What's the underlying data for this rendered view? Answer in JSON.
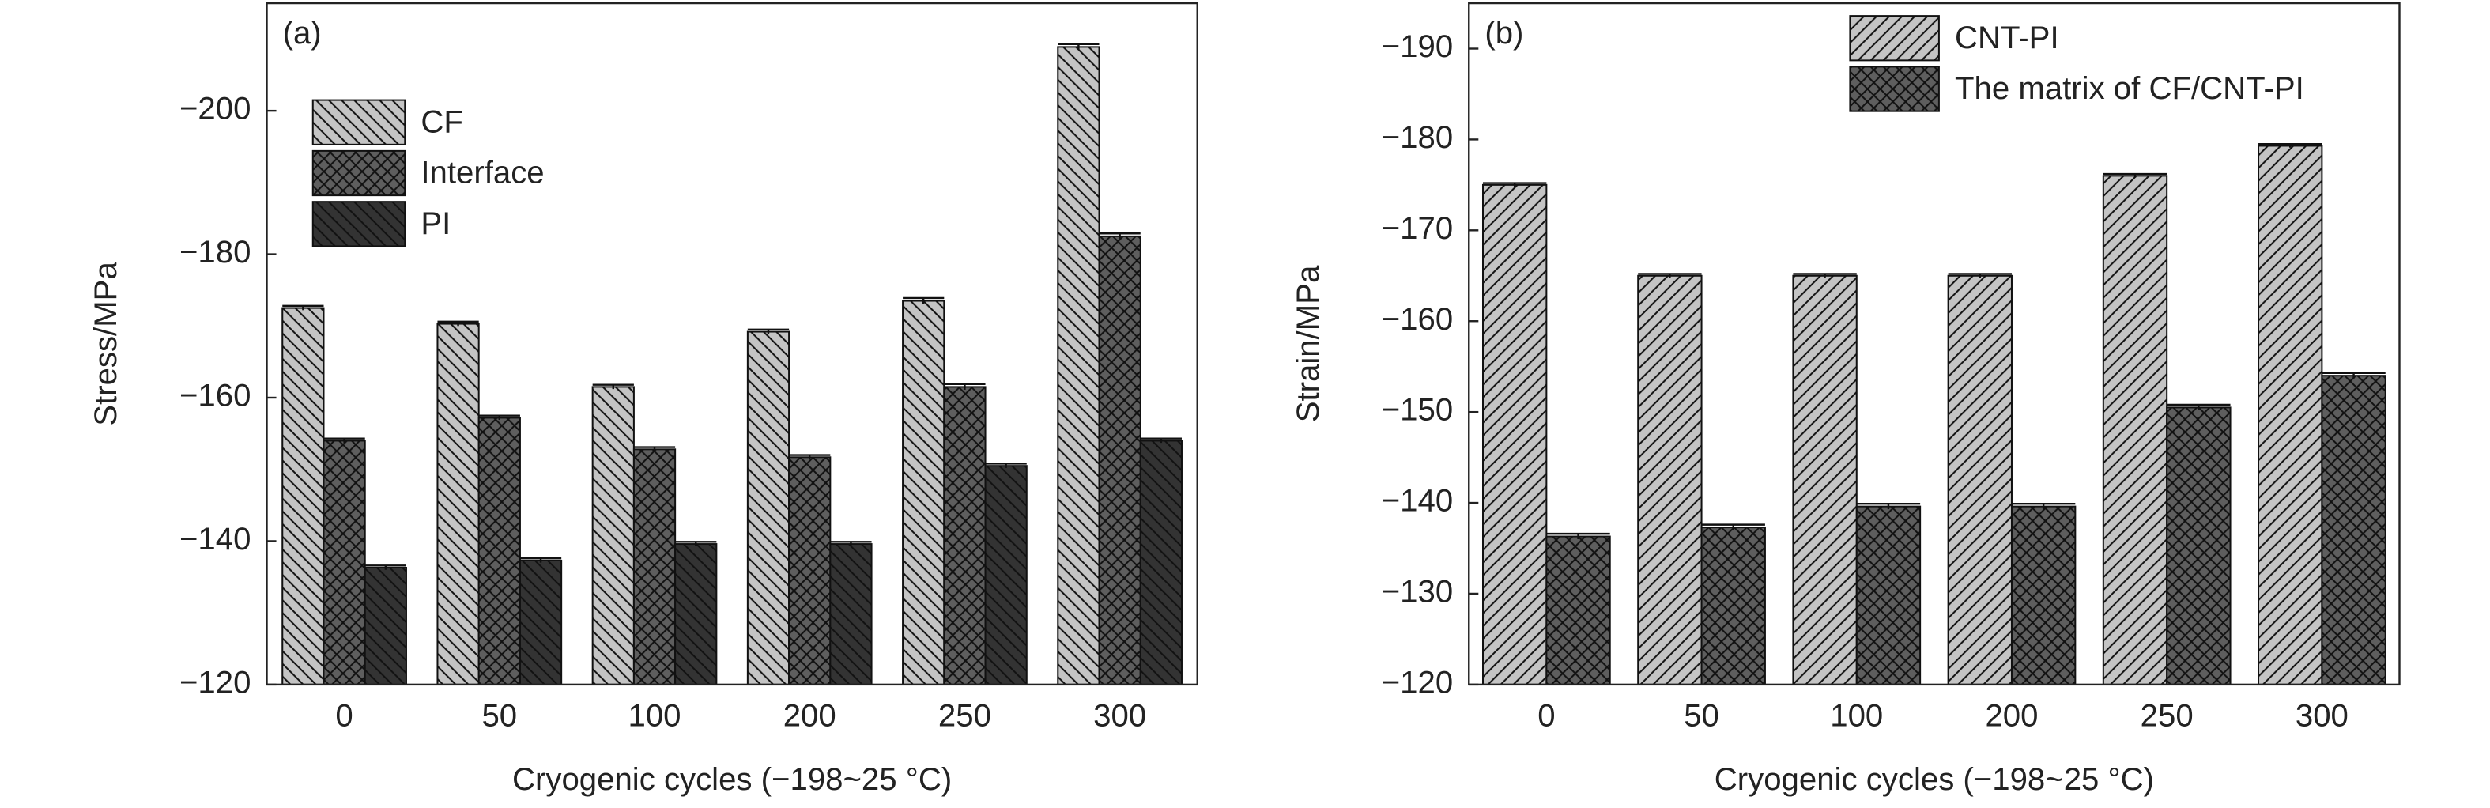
{
  "chart_data": [
    {
      "type": "bar",
      "panel_label": "(a)",
      "y_label": "Stress/MPa",
      "x_label": "Cryogenic cycles (−198~25 °C)",
      "categories": [
        "0",
        "50",
        "100",
        "200",
        "250",
        "300"
      ],
      "series": [
        {
          "name": "CF",
          "color": "#c4c4c4",
          "pattern": "backslash",
          "values": [
            -172.5,
            -170.3,
            -161.5,
            -169.2,
            -173.5,
            -208.9
          ],
          "errors": [
            0.3,
            0.3,
            0.3,
            0.3,
            0.4,
            0.4
          ]
        },
        {
          "name": "Interface",
          "color": "#5e5e5e",
          "pattern": "cross",
          "values": [
            -154,
            -157.2,
            -152.8,
            -151.7,
            -161.5,
            -182.5
          ],
          "errors": [
            0.3,
            0.3,
            0.3,
            0.3,
            0.4,
            0.4
          ]
        },
        {
          "name": "PI",
          "color": "#333333",
          "pattern": "backslash",
          "values": [
            -136.3,
            -137.3,
            -139.6,
            -139.6,
            -150.5,
            -154
          ],
          "errors": [
            0.3,
            0.3,
            0.3,
            0.3,
            0.3,
            0.3
          ]
        }
      ],
      "ylim": [
        -120,
        -215
      ],
      "yticks": [
        {
          "value": -120,
          "label": "−120"
        },
        {
          "value": -140,
          "label": "−140"
        },
        {
          "value": -160,
          "label": "−160"
        },
        {
          "value": -180,
          "label": "−180"
        },
        {
          "value": -200,
          "label": "−200"
        }
      ],
      "legend": "upper left"
    },
    {
      "type": "bar",
      "panel_label": "(b)",
      "y_label": "Strain/MPa",
      "x_label": "Cryogenic cycles (−198~25 °C)",
      "categories": [
        "0",
        "50",
        "100",
        "200",
        "250",
        "300"
      ],
      "series": [
        {
          "name": "CNT-PI",
          "color": "#c4c4c4",
          "pattern": "slash",
          "values": [
            -175,
            -165,
            -165,
            -165,
            -176,
            -179.3
          ],
          "errors": [
            0.2,
            0.2,
            0.2,
            0.2,
            0.2,
            0.2
          ]
        },
        {
          "name": "The matrix of CF/CNT-PI",
          "color": "#5e5e5e",
          "pattern": "cross",
          "values": [
            -136.3,
            -137.3,
            -139.6,
            -139.6,
            -150.5,
            -154
          ],
          "errors": [
            0.3,
            0.3,
            0.3,
            0.3,
            0.3,
            0.3
          ]
        }
      ],
      "ylim": [
        -120,
        -195
      ],
      "yticks": [
        {
          "value": -120,
          "label": "−120"
        },
        {
          "value": -130,
          "label": "−130"
        },
        {
          "value": -140,
          "label": "−140"
        },
        {
          "value": -150,
          "label": "−150"
        },
        {
          "value": -160,
          "label": "−160"
        },
        {
          "value": -170,
          "label": "−170"
        },
        {
          "value": -180,
          "label": "−180"
        },
        {
          "value": -190,
          "label": "−190"
        }
      ],
      "legend": "upper right"
    }
  ]
}
